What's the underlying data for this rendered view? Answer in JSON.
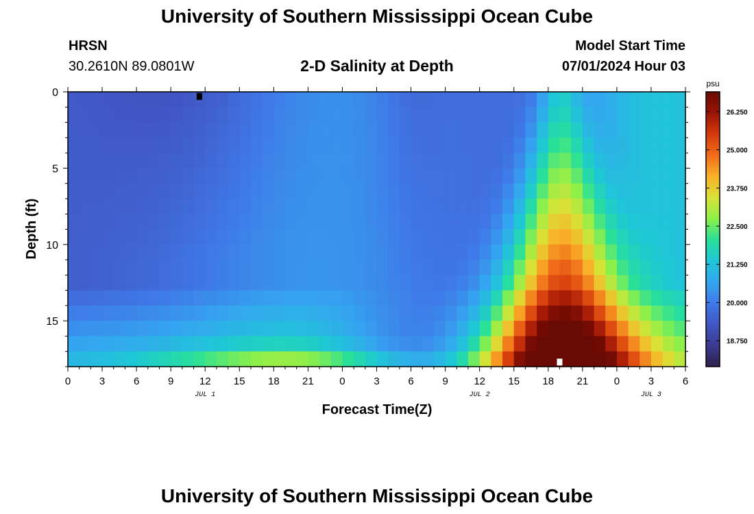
{
  "header": {
    "title": "University of Southern Mississippi Ocean Cube",
    "station": "HRSN",
    "coords": "30.2610N  89.0801W",
    "subtitle": "2-D Salinity at Depth",
    "start_label": "Model Start Time",
    "start_time": "07/01/2024 Hour 03"
  },
  "footer": {
    "title": "University of Southern Mississippi Ocean Cube"
  },
  "colors": {
    "palette": [
      "#2e1f4d",
      "#3c3a8f",
      "#4156c4",
      "#3f7ae8",
      "#34a6f0",
      "#1fc7d6",
      "#28e09a",
      "#8df04a",
      "#d8e236",
      "#f9b228",
      "#f06c1a",
      "#d43a0c",
      "#9a1406",
      "#6a0a04"
    ]
  },
  "chart_data": {
    "type": "heatmap",
    "xlabel": "Forecast Time(Z)",
    "ylabel": "Depth (ft)",
    "x_range_hours": [
      0,
      54
    ],
    "ylim": [
      0,
      18
    ],
    "x_tick_labels": [
      "0",
      "3",
      "6",
      "9",
      "12",
      "15",
      "18",
      "21",
      "0",
      "3",
      "6",
      "9",
      "12",
      "15",
      "18",
      "21",
      "0",
      "3",
      "6"
    ],
    "date_labels": [
      {
        "label": "JUL 1",
        "hour": 12
      },
      {
        "label": "JUL 2",
        "hour": 36
      },
      {
        "label": "JUL 3",
        "hour": 51
      }
    ],
    "y_ticks": [
      0,
      5,
      10,
      15
    ],
    "colorbar": {
      "unit": "psu",
      "min": 17.9,
      "max": 26.9,
      "tick_values": [
        18.75,
        20.0,
        21.25,
        22.5,
        23.75,
        25.0,
        26.25
      ],
      "tick_labels": [
        "18.750",
        "20.000",
        "21.250",
        "22.500",
        "23.750",
        "25.000",
        "26.250"
      ]
    },
    "markers": [
      {
        "name": "min-marker",
        "hour": 11.5,
        "depth": 0.3,
        "color": "#000000"
      },
      {
        "name": "max-marker",
        "hour": 43.0,
        "depth": 17.7,
        "color": "#ffffff"
      }
    ],
    "grid": {
      "cols": 54,
      "rows": 18
    }
  }
}
